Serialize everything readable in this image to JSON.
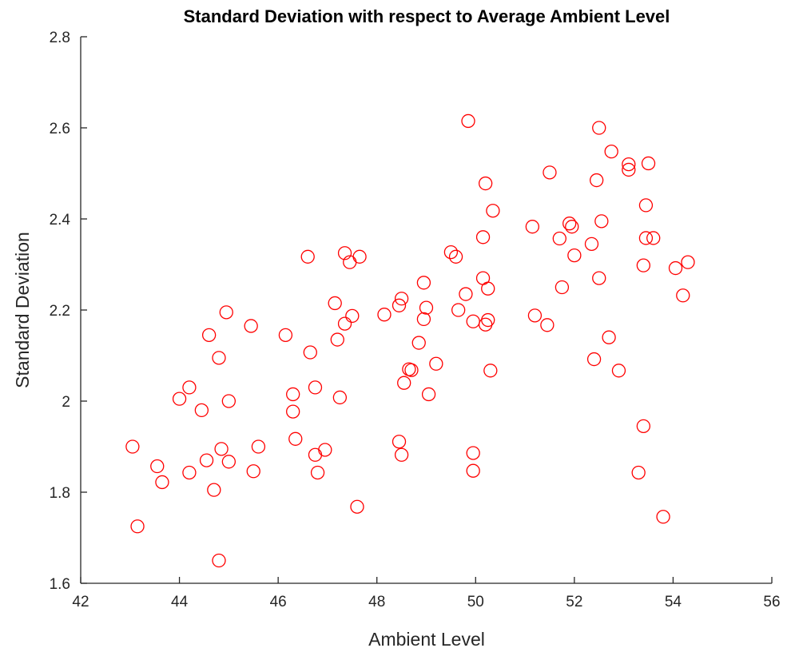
{
  "chart_data": {
    "type": "scatter",
    "title": "Standard Deviation with respect to Average Ambient Level",
    "xlabel": "Ambient Level",
    "ylabel": "Standard Deviation",
    "xlim": [
      42,
      56
    ],
    "ylim": [
      1.6,
      2.8
    ],
    "xticks": [
      42,
      44,
      46,
      48,
      50,
      52,
      54,
      56
    ],
    "yticks": [
      1.6,
      1.8,
      2.0,
      2.2,
      2.4,
      2.6,
      2.8
    ],
    "xtick_labels": [
      "42",
      "44",
      "46",
      "48",
      "50",
      "52",
      "54",
      "56"
    ],
    "ytick_labels": [
      "1.6",
      "1.8",
      "2",
      "2.2",
      "2.4",
      "2.6",
      "2.8"
    ],
    "grid": false,
    "legend": "none",
    "marker": "circle-open",
    "marker_color": "#ff0000",
    "series": [
      {
        "points": [
          [
            43.05,
            1.9
          ],
          [
            43.15,
            1.725
          ],
          [
            43.55,
            1.857
          ],
          [
            43.65,
            1.822
          ],
          [
            44.0,
            2.005
          ],
          [
            44.2,
            1.843
          ],
          [
            44.2,
            2.03
          ],
          [
            44.45,
            1.98
          ],
          [
            44.55,
            1.87
          ],
          [
            44.6,
            2.145
          ],
          [
            44.7,
            1.805
          ],
          [
            44.8,
            2.095
          ],
          [
            44.8,
            1.65
          ],
          [
            44.85,
            1.895
          ],
          [
            44.95,
            2.195
          ],
          [
            45.0,
            2.0
          ],
          [
            45.0,
            1.867
          ],
          [
            45.45,
            2.165
          ],
          [
            45.5,
            1.846
          ],
          [
            45.6,
            1.9
          ],
          [
            46.15,
            2.145
          ],
          [
            46.3,
            2.015
          ],
          [
            46.3,
            1.977
          ],
          [
            46.35,
            1.917
          ],
          [
            46.6,
            2.317
          ],
          [
            46.65,
            2.107
          ],
          [
            46.75,
            2.03
          ],
          [
            46.75,
            1.882
          ],
          [
            46.8,
            1.843
          ],
          [
            46.95,
            1.893
          ],
          [
            47.15,
            2.215
          ],
          [
            47.2,
            2.135
          ],
          [
            47.25,
            2.008
          ],
          [
            47.35,
            2.325
          ],
          [
            47.35,
            2.17
          ],
          [
            47.45,
            2.305
          ],
          [
            47.5,
            2.187
          ],
          [
            47.6,
            1.768
          ],
          [
            47.65,
            2.317
          ],
          [
            48.15,
            2.19
          ],
          [
            48.45,
            2.21
          ],
          [
            48.5,
            2.225
          ],
          [
            48.45,
            1.911
          ],
          [
            48.5,
            1.882
          ],
          [
            48.55,
            2.04
          ],
          [
            48.65,
            2.07
          ],
          [
            48.7,
            2.068
          ],
          [
            48.85,
            2.128
          ],
          [
            48.95,
            2.26
          ],
          [
            48.95,
            2.18
          ],
          [
            49.0,
            2.205
          ],
          [
            49.05,
            2.015
          ],
          [
            49.2,
            2.082
          ],
          [
            49.5,
            2.327
          ],
          [
            49.6,
            2.317
          ],
          [
            49.65,
            2.2
          ],
          [
            49.8,
            2.235
          ],
          [
            49.85,
            2.615
          ],
          [
            49.95,
            1.886
          ],
          [
            49.95,
            1.847
          ],
          [
            49.95,
            2.175
          ],
          [
            50.15,
            2.36
          ],
          [
            50.15,
            2.27
          ],
          [
            50.2,
            2.478
          ],
          [
            50.2,
            2.168
          ],
          [
            50.25,
            2.247
          ],
          [
            50.25,
            2.178
          ],
          [
            50.3,
            2.067
          ],
          [
            50.35,
            2.418
          ],
          [
            51.15,
            2.383
          ],
          [
            51.2,
            2.188
          ],
          [
            51.45,
            2.167
          ],
          [
            51.5,
            2.502
          ],
          [
            51.7,
            2.357
          ],
          [
            51.75,
            2.25
          ],
          [
            51.9,
            2.39
          ],
          [
            51.95,
            2.383
          ],
          [
            52.0,
            2.32
          ],
          [
            52.35,
            2.345
          ],
          [
            52.4,
            2.092
          ],
          [
            52.45,
            2.485
          ],
          [
            52.5,
            2.27
          ],
          [
            52.5,
            2.6
          ],
          [
            52.55,
            2.395
          ],
          [
            52.7,
            2.14
          ],
          [
            52.75,
            2.548
          ],
          [
            52.9,
            2.067
          ],
          [
            53.1,
            2.52
          ],
          [
            53.1,
            2.508
          ],
          [
            53.3,
            1.843
          ],
          [
            53.4,
            1.945
          ],
          [
            53.4,
            2.298
          ],
          [
            53.45,
            2.43
          ],
          [
            53.45,
            2.358
          ],
          [
            53.5,
            2.522
          ],
          [
            53.6,
            2.358
          ],
          [
            53.8,
            1.746
          ],
          [
            54.05,
            2.292
          ],
          [
            54.2,
            2.232
          ],
          [
            54.3,
            2.305
          ]
        ]
      }
    ]
  }
}
